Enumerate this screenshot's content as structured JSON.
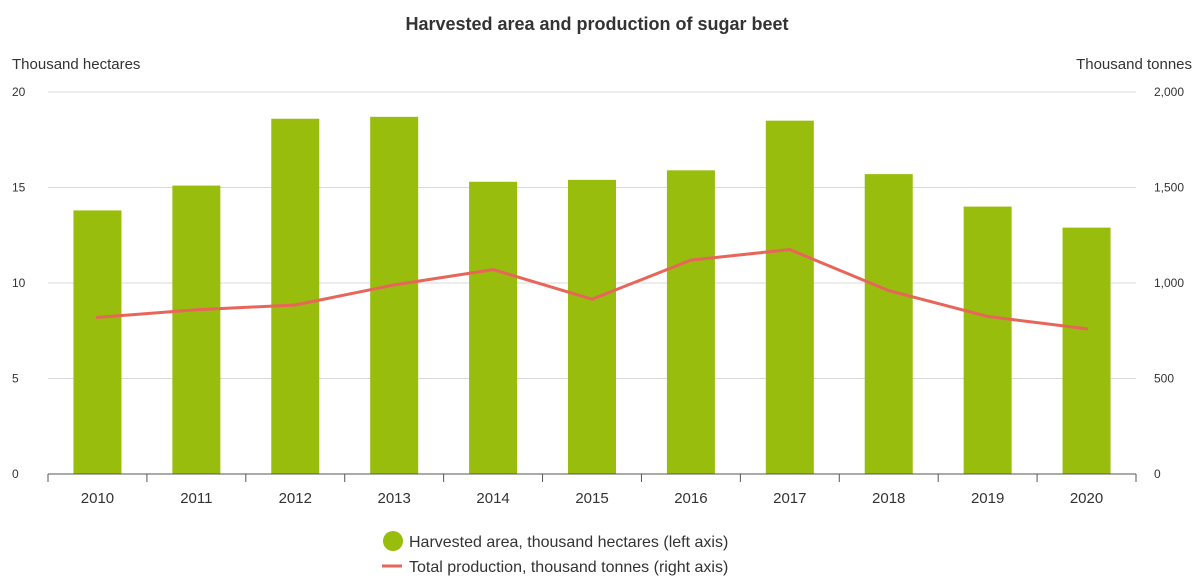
{
  "chart_data": {
    "type": "bar",
    "title": "Harvested area and production of sugar beet",
    "ylabel": "Thousand hectares",
    "y2label": "Thousand tonnes",
    "categories": [
      "2010",
      "2011",
      "2012",
      "2013",
      "2014",
      "2015",
      "2016",
      "2017",
      "2018",
      "2019",
      "2020"
    ],
    "ylim": [
      0,
      20
    ],
    "y_ticks": [
      0,
      5,
      10,
      15,
      20
    ],
    "y_tick_labels": [
      "0",
      "5",
      "10",
      "15",
      "20"
    ],
    "y2lim": [
      0,
      2000
    ],
    "y2_ticks": [
      0,
      500,
      1000,
      1500,
      2000
    ],
    "y2_tick_labels": [
      "0",
      "500",
      "1,000",
      "1,500",
      "2,000"
    ],
    "grid": true,
    "legend_position": "bottom-center",
    "series": [
      {
        "name": "Harvested area, thousand hectares (left axis)",
        "type": "bar",
        "axis": "left",
        "color": "#98bd0d",
        "values": [
          13.8,
          15.1,
          18.6,
          18.7,
          15.3,
          15.4,
          15.9,
          18.5,
          15.7,
          14.0,
          12.9
        ]
      },
      {
        "name": "Total production, thousand tonnes (right axis)",
        "type": "line",
        "axis": "right",
        "color": "#e8655a",
        "values": [
          820,
          860,
          885,
          990,
          1070,
          915,
          1120,
          1175,
          960,
          825,
          760
        ]
      }
    ]
  }
}
